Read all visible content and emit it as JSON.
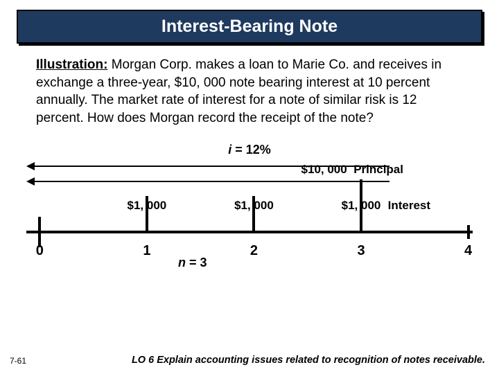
{
  "title": "Interest-Bearing Note",
  "illustration_label": "Illustration:",
  "illustration_text": "  Morgan Corp. makes a loan to Marie Co. and receives in exchange a three-year, $10, 000 note bearing interest at 10 percent annually. The market rate of interest for a note of similar risk is 12 percent.  How does Morgan record the receipt of the note?",
  "rate_var": "i",
  "rate_eq": " = 12%",
  "principal_amount": "$10, 000",
  "principal_word": "Principal",
  "interest_amounts": [
    "$1, 000",
    "$1, 000",
    "$1, 000"
  ],
  "interest_word": "Interest",
  "axis_labels": [
    "0",
    "1",
    "2",
    "3",
    "4"
  ],
  "n_var": "n",
  "n_eq": " = 3",
  "footer_lo": "LO 6  Explain accounting issues related to recognition of notes receivable.",
  "page_num": "7-61",
  "colors": {
    "title_bg": "#1f3a5f",
    "title_fg": "#ffffff",
    "text": "#000000",
    "bg": "#ffffff"
  },
  "layout": {
    "tick_positions_pct": [
      3,
      27,
      51,
      75,
      99
    ],
    "interest_label_positions_pct": [
      27,
      51,
      75
    ],
    "interest_word_left_pct": 81,
    "n_eq_left_pct": 34
  }
}
